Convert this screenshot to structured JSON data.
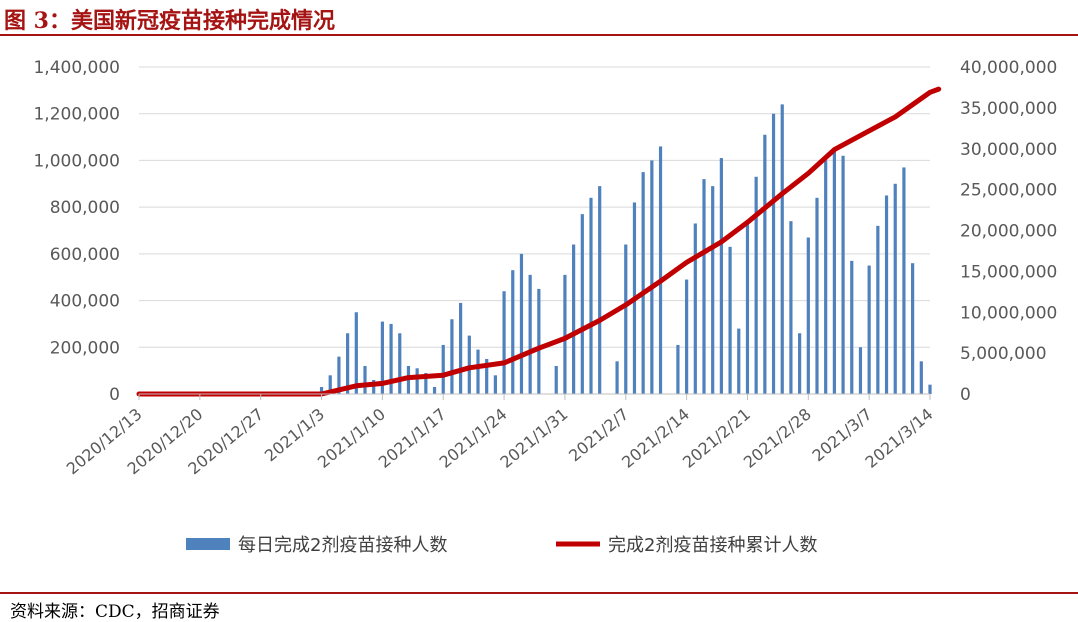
{
  "header": {
    "title": "图 3：美国新冠疫苗接种完成情况"
  },
  "footer": {
    "source": "资料来源：CDC，招商证券"
  },
  "colors": {
    "accent": "#a51313",
    "bar": "#4f81bd",
    "line": "#c00000"
  },
  "chart_data": {
    "type": "bar+line",
    "title": "",
    "x_tick_labels": [
      "2020/12/13",
      "2020/12/20",
      "2020/12/27",
      "2021/1/3",
      "2021/1/10",
      "2021/1/17",
      "2021/1/24",
      "2021/1/31",
      "2021/2/7",
      "2021/2/14",
      "2021/2/21",
      "2021/2/28",
      "2021/3/7",
      "2021/3/14"
    ],
    "y_left": {
      "lim": [
        0,
        1400000
      ],
      "ticks": [
        "0",
        "200,000",
        "400,000",
        "600,000",
        "800,000",
        "1,000,000",
        "1,200,000",
        "1,400,000"
      ]
    },
    "y_right": {
      "lim": [
        0,
        40000000
      ],
      "ticks": [
        "0",
        "5,000,000",
        "10,000,000",
        "15,000,000",
        "20,000,000",
        "25,000,000",
        "30,000,000",
        "35,000,000",
        "40,000,000"
      ]
    },
    "grid": true,
    "legend_position": "bottom",
    "series": [
      {
        "name": "每日完成2剂疫苗接种人数",
        "type": "bar",
        "axis": "left",
        "x": [
          "2021/1/3",
          "2021/1/4",
          "2021/1/5",
          "2021/1/6",
          "2021/1/7",
          "2021/1/8",
          "2021/1/9",
          "2021/1/10",
          "2021/1/11",
          "2021/1/12",
          "2021/1/13",
          "2021/1/14",
          "2021/1/15",
          "2021/1/16",
          "2021/1/17",
          "2021/1/18",
          "2021/1/19",
          "2021/1/20",
          "2021/1/21",
          "2021/1/22",
          "2021/1/23",
          "2021/1/24",
          "2021/1/25",
          "2021/1/26",
          "2021/1/27",
          "2021/1/28",
          "2021/1/29",
          "2021/1/30",
          "2021/1/31",
          "2021/2/1",
          "2021/2/2",
          "2021/2/3",
          "2021/2/4",
          "2021/2/5",
          "2021/2/6",
          "2021/2/7",
          "2021/2/8",
          "2021/2/9",
          "2021/2/10",
          "2021/2/11",
          "2021/2/12",
          "2021/2/13",
          "2021/2/14",
          "2021/2/15",
          "2021/2/16",
          "2021/2/17",
          "2021/2/18",
          "2021/2/19",
          "2021/2/20",
          "2021/2/21",
          "2021/2/22",
          "2021/2/23",
          "2021/2/24",
          "2021/2/25",
          "2021/2/26",
          "2021/2/27",
          "2021/2/28",
          "2021/3/1",
          "2021/3/2",
          "2021/3/3",
          "2021/3/4",
          "2021/3/5",
          "2021/3/6",
          "2021/3/7",
          "2021/3/8",
          "2021/3/9",
          "2021/3/10",
          "2021/3/11",
          "2021/3/12",
          "2021/3/13",
          "2021/3/14",
          "2021/3/15"
        ],
        "values": [
          30000,
          80000,
          160000,
          260000,
          350000,
          120000,
          60000,
          310000,
          300000,
          260000,
          120000,
          110000,
          90000,
          30000,
          210000,
          320000,
          390000,
          250000,
          190000,
          150000,
          80000,
          440000,
          530000,
          600000,
          510000,
          450000,
          0,
          120000,
          510000,
          640000,
          770000,
          840000,
          890000,
          0,
          140000,
          640000,
          820000,
          950000,
          1000000,
          1060000,
          0,
          210000,
          490000,
          730000,
          920000,
          890000,
          1010000,
          630000,
          280000,
          730000,
          930000,
          1110000,
          1200000,
          1240000,
          740000,
          260000,
          670000,
          840000,
          1000000,
          1040000,
          1020000,
          570000,
          200000,
          550000,
          720000,
          850000,
          900000,
          970000,
          560000,
          140000,
          40000,
          0
        ]
      },
      {
        "name": "完成2剂疫苗接种累计人数",
        "type": "line",
        "axis": "right",
        "points": [
          [
            "2020/12/13",
            0
          ],
          [
            "2021/1/3",
            0
          ],
          [
            "2021/1/5",
            500000
          ],
          [
            "2021/1/7",
            1000000
          ],
          [
            "2021/1/10",
            1300000
          ],
          [
            "2021/1/13",
            2000000
          ],
          [
            "2021/1/17",
            2300000
          ],
          [
            "2021/1/20",
            3200000
          ],
          [
            "2021/1/24",
            3800000
          ],
          [
            "2021/1/28",
            5600000
          ],
          [
            "2021/1/31",
            6800000
          ],
          [
            "2021/2/4",
            9000000
          ],
          [
            "2021/2/7",
            10900000
          ],
          [
            "2021/2/11",
            13800000
          ],
          [
            "2021/2/14",
            16100000
          ],
          [
            "2021/2/18",
            18600000
          ],
          [
            "2021/2/21",
            21000000
          ],
          [
            "2021/2/25",
            24500000
          ],
          [
            "2021/2/28",
            27000000
          ],
          [
            "2021/3/3",
            29900000
          ],
          [
            "2021/3/7",
            32200000
          ],
          [
            "2021/3/10",
            33900000
          ],
          [
            "2021/3/14",
            36900000
          ],
          [
            "2021/3/15",
            37300000
          ]
        ]
      }
    ]
  }
}
